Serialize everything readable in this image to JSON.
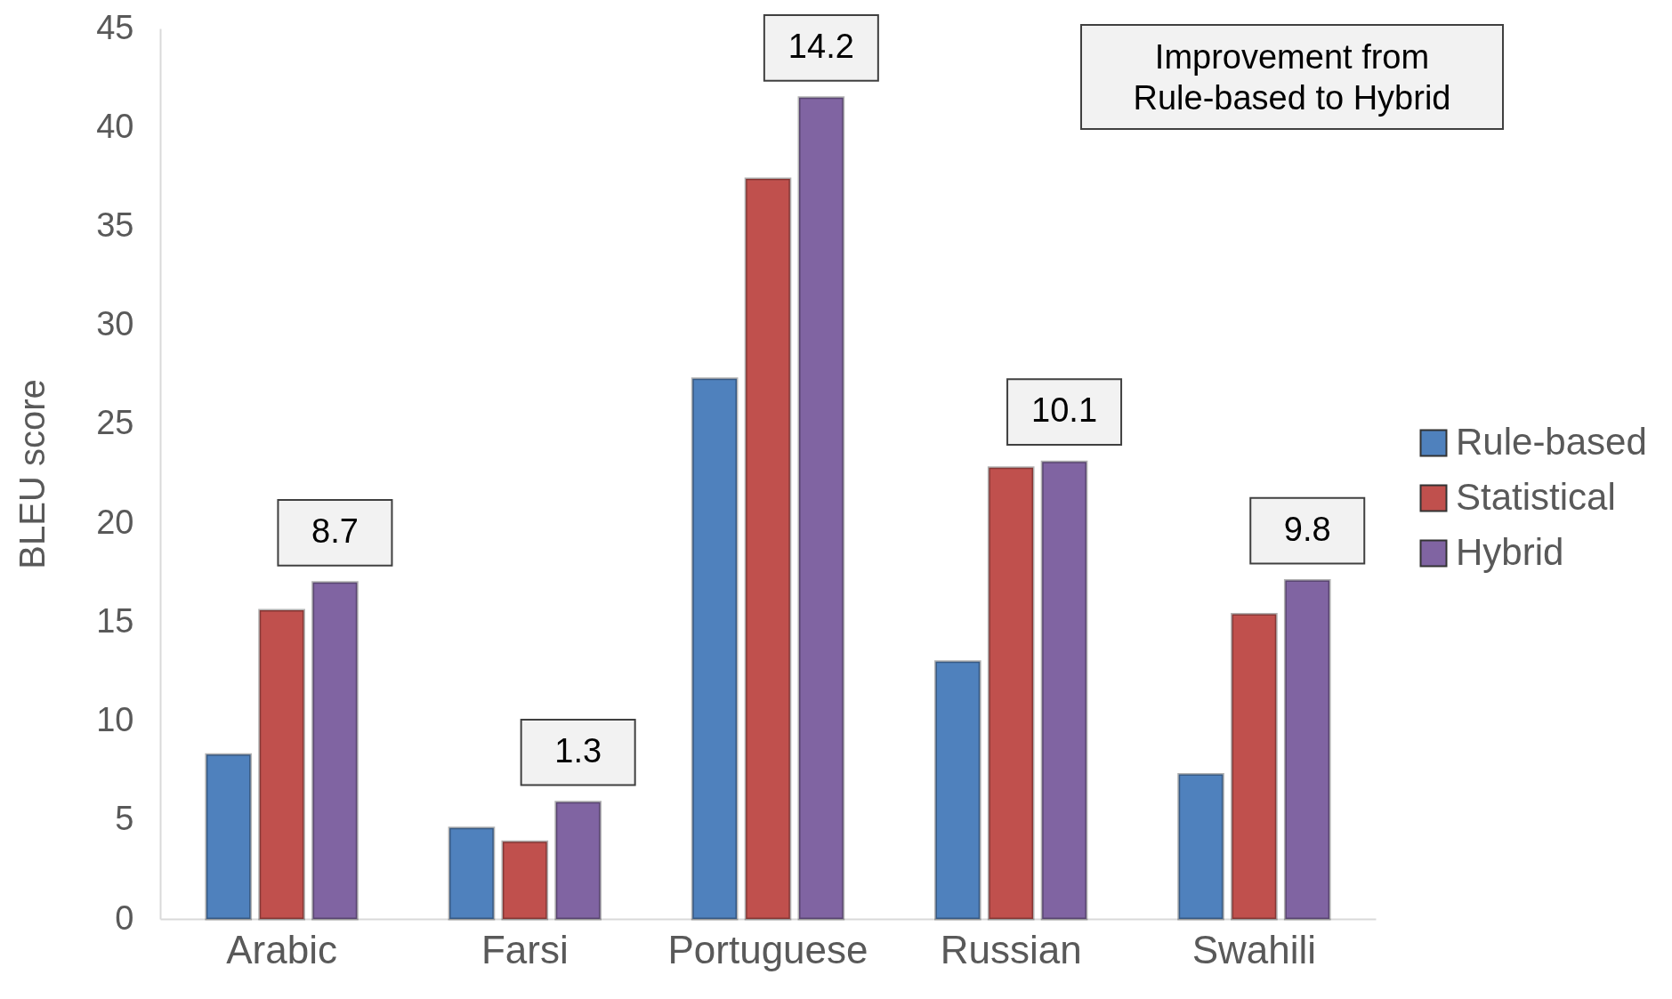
{
  "chart_data": {
    "type": "bar",
    "ylabel": "BLEU score",
    "categories": [
      "Arabic",
      "Farsi",
      "Portuguese",
      "Russian",
      "Swahili"
    ],
    "series": [
      {
        "name": "Rule-based",
        "color": "#4f81bd",
        "values": [
          8.3,
          4.6,
          27.3,
          13.0,
          7.3
        ]
      },
      {
        "name": "Statistical",
        "color": "#c0504d",
        "values": [
          15.6,
          3.9,
          37.4,
          22.8,
          15.4
        ]
      },
      {
        "name": "Hybrid",
        "color": "#8064a2",
        "values": [
          17.0,
          5.9,
          41.5,
          23.1,
          17.1
        ]
      }
    ],
    "ylim": [
      0,
      45
    ],
    "yticks": [
      0,
      5,
      10,
      15,
      20,
      25,
      30,
      35,
      40,
      45
    ],
    "grid": false,
    "legend": "right",
    "annotations": [
      "Improvement from\nRule-based to Hybrid",
      "8.7",
      "1.3",
      "14.2",
      "10.1",
      "9.8"
    ]
  }
}
